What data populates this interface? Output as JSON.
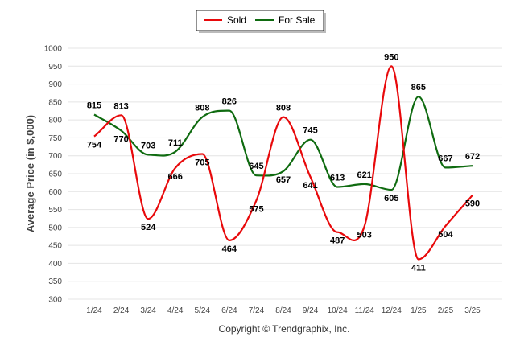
{
  "chart_data": {
    "type": "line",
    "title": "",
    "xlabel": "",
    "ylabel": "Average Price (in $,000)",
    "ylim": [
      300,
      1000
    ],
    "yticks": [
      300,
      350,
      400,
      450,
      500,
      550,
      600,
      650,
      700,
      750,
      800,
      850,
      900,
      950,
      1000
    ],
    "categories": [
      "1/24",
      "2/24",
      "3/24",
      "4/24",
      "5/24",
      "6/24",
      "7/24",
      "8/24",
      "9/24",
      "10/24",
      "11/24",
      "12/24",
      "1/25",
      "2/25",
      "3/25"
    ],
    "grid": true,
    "legend_position": "top-center",
    "series": [
      {
        "name": "Sold",
        "color": "#e8090b",
        "values": [
          754,
          813,
          524,
          666,
          705,
          464,
          575,
          808,
          641,
          487,
          503,
          950,
          411,
          504,
          590
        ]
      },
      {
        "name": "For Sale",
        "color": "#0f6b10",
        "values": [
          815,
          770,
          703,
          711,
          808,
          826,
          645,
          657,
          745,
          613,
          621,
          605,
          865,
          667,
          672
        ]
      }
    ]
  },
  "footer": {
    "copyright": "Copyright © Trendgraphix, Inc."
  }
}
